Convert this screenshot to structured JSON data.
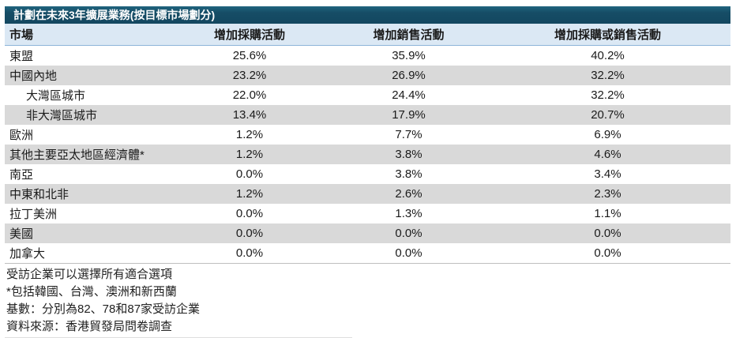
{
  "chart_data": {
    "type": "table",
    "title": "計劃在未來3年擴展業務(按目標市場劃分)",
    "columns": [
      "市場",
      "增加採購活動",
      "增加銷售活動",
      "增加採購或銷售活動"
    ],
    "rows": [
      {
        "market": "東盟",
        "indent": false,
        "values": [
          "25.6%",
          "35.9%",
          "40.2%"
        ]
      },
      {
        "market": "中國內地",
        "indent": false,
        "values": [
          "23.2%",
          "26.9%",
          "32.2%"
        ]
      },
      {
        "market": "大灣區城市",
        "indent": true,
        "values": [
          "22.0%",
          "24.4%",
          "32.2%"
        ]
      },
      {
        "market": "非大灣區城市",
        "indent": true,
        "values": [
          "13.4%",
          "17.9%",
          "20.7%"
        ]
      },
      {
        "market": "歐洲",
        "indent": false,
        "values": [
          "1.2%",
          "7.7%",
          "6.9%"
        ]
      },
      {
        "market": "其他主要亞太地區經濟體*",
        "indent": false,
        "values": [
          "1.2%",
          "3.8%",
          "4.6%"
        ]
      },
      {
        "market": "南亞",
        "indent": false,
        "values": [
          "0.0%",
          "3.8%",
          "3.4%"
        ]
      },
      {
        "market": "中東和北非",
        "indent": false,
        "values": [
          "1.2%",
          "2.6%",
          "2.3%"
        ]
      },
      {
        "market": "拉丁美洲",
        "indent": false,
        "values": [
          "0.0%",
          "1.3%",
          "1.1%"
        ]
      },
      {
        "market": "美國",
        "indent": false,
        "values": [
          "0.0%",
          "0.0%",
          "0.0%"
        ]
      },
      {
        "market": "加拿大",
        "indent": false,
        "values": [
          "0.0%",
          "0.0%",
          "0.0%"
        ]
      }
    ],
    "footnotes": [
      "受訪企業可以選擇所有適合選項",
      "*包括韓國、台灣、澳洲和新西蘭",
      "基數：分別為82、78和87家受訪企業",
      "資料來源：香港貿發局問卷調查"
    ],
    "layout_hints": {
      "legend": "none",
      "grid": "alternating-row-shading"
    }
  },
  "colors": {
    "title_bar_bg": "#134760",
    "title_bar_text": "#ffffff",
    "header_bg": "#dbe8f4",
    "header_border": "#8eb4d9",
    "row_alt_bg": "#d9d9d9",
    "table_end_border": "#bfbfbf",
    "body_text": "#1a1a1a"
  }
}
